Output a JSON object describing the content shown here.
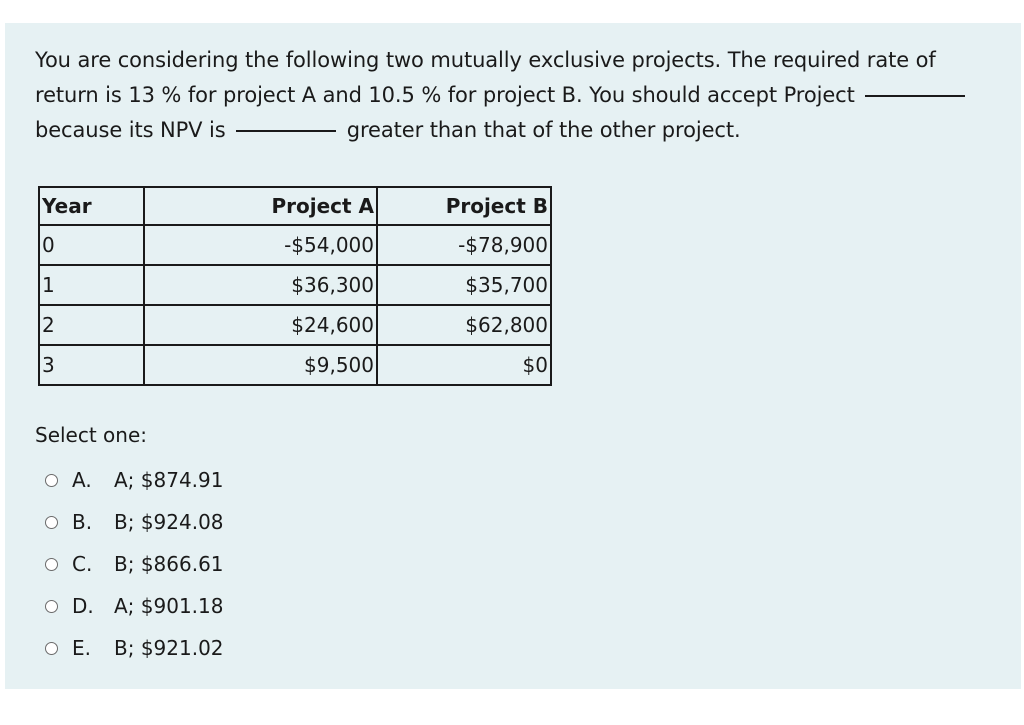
{
  "question": {
    "part1": "You are considering the following two mutually exclusive projects. The required rate of return is 13 % for project A and 10.5 % for project B. You should accept Project",
    "part2": "because its NPV is",
    "part3": "greater than that of the other project."
  },
  "table": {
    "headers": [
      "Year",
      "Project A",
      "Project B"
    ],
    "rows": [
      [
        "0",
        "-$54,000",
        "-$78,900"
      ],
      [
        "1",
        "$36,300",
        "$35,700"
      ],
      [
        "2",
        "$24,600",
        "$62,800"
      ],
      [
        "3",
        "$9,500",
        "$0"
      ]
    ]
  },
  "select_label": "Select one:",
  "options": [
    {
      "letter": "A.",
      "text": "A; $874.91"
    },
    {
      "letter": "B.",
      "text": "B; $924.08"
    },
    {
      "letter": "C.",
      "text": "B; $866.61"
    },
    {
      "letter": "D.",
      "text": "A; $901.18"
    },
    {
      "letter": "E.",
      "text": "B; $921.02"
    }
  ]
}
